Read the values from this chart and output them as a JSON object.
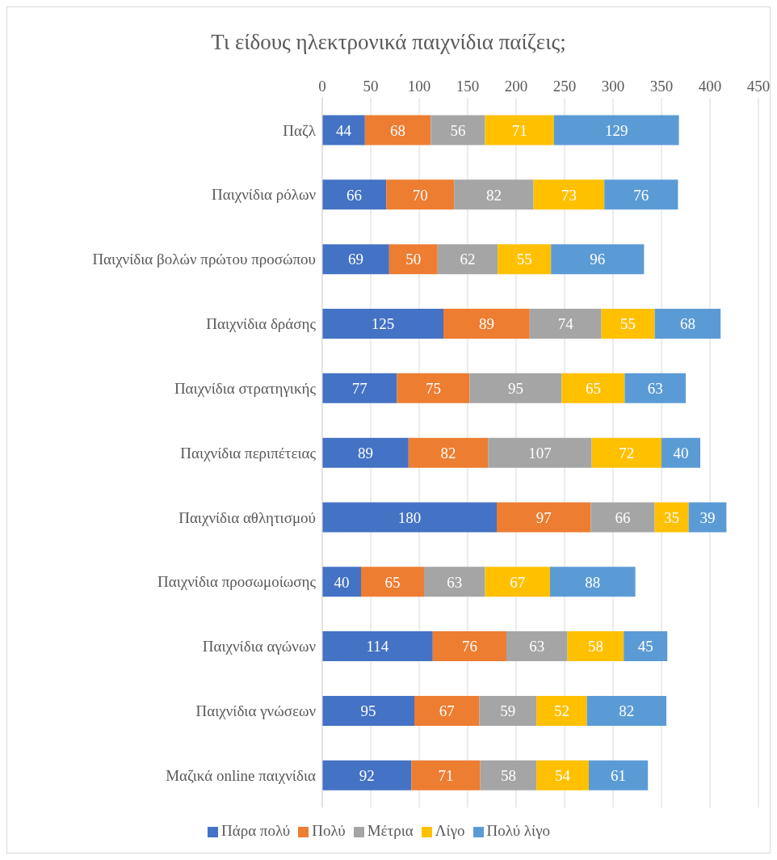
{
  "chart_data": {
    "type": "bar",
    "orientation": "horizontal",
    "stacked": true,
    "title": "Τι είδους ηλεκτρονικά παιχνίδια παίζεις;",
    "categories": [
      "Παζλ",
      "Παιχνίδια ρόλων",
      "Παιχνίδια βολών πρώτου προσώπου",
      "Παιχνίδια δράσης",
      "Παιχνίδια στρατηγικής",
      "Παιχνίδια περιπέτειας",
      "Παιχνίδια αθλητισμού",
      "Παιχνίδια προσωμοίωσης",
      "Παιχνίδια αγώνων",
      "Παιχνίδια γνώσεων",
      "Μαζικά online παιχνίδια"
    ],
    "series": [
      {
        "name": "Πάρα πολύ",
        "color": "#4472c4",
        "values": [
          44,
          66,
          69,
          125,
          77,
          89,
          180,
          40,
          114,
          95,
          92
        ]
      },
      {
        "name": "Πολύ",
        "color": "#ed7d31",
        "values": [
          68,
          70,
          50,
          89,
          75,
          82,
          97,
          65,
          76,
          67,
          71
        ]
      },
      {
        "name": "Μέτρια",
        "color": "#a5a5a5",
        "values": [
          56,
          82,
          62,
          74,
          95,
          107,
          66,
          63,
          63,
          59,
          58
        ]
      },
      {
        "name": "Λίγο",
        "color": "#ffc000",
        "values": [
          71,
          73,
          55,
          55,
          65,
          72,
          35,
          67,
          58,
          52,
          54
        ]
      },
      {
        "name": "Πολύ λίγο",
        "color": "#5b9bd5",
        "values": [
          129,
          76,
          96,
          68,
          63,
          40,
          39,
          88,
          45,
          82,
          61
        ]
      }
    ],
    "xlim": [
      0,
      450
    ],
    "xticks": [
      0,
      50,
      100,
      150,
      200,
      250,
      300,
      350,
      400,
      450
    ],
    "grid": "x",
    "legend": "bottom",
    "data_labels": true
  }
}
